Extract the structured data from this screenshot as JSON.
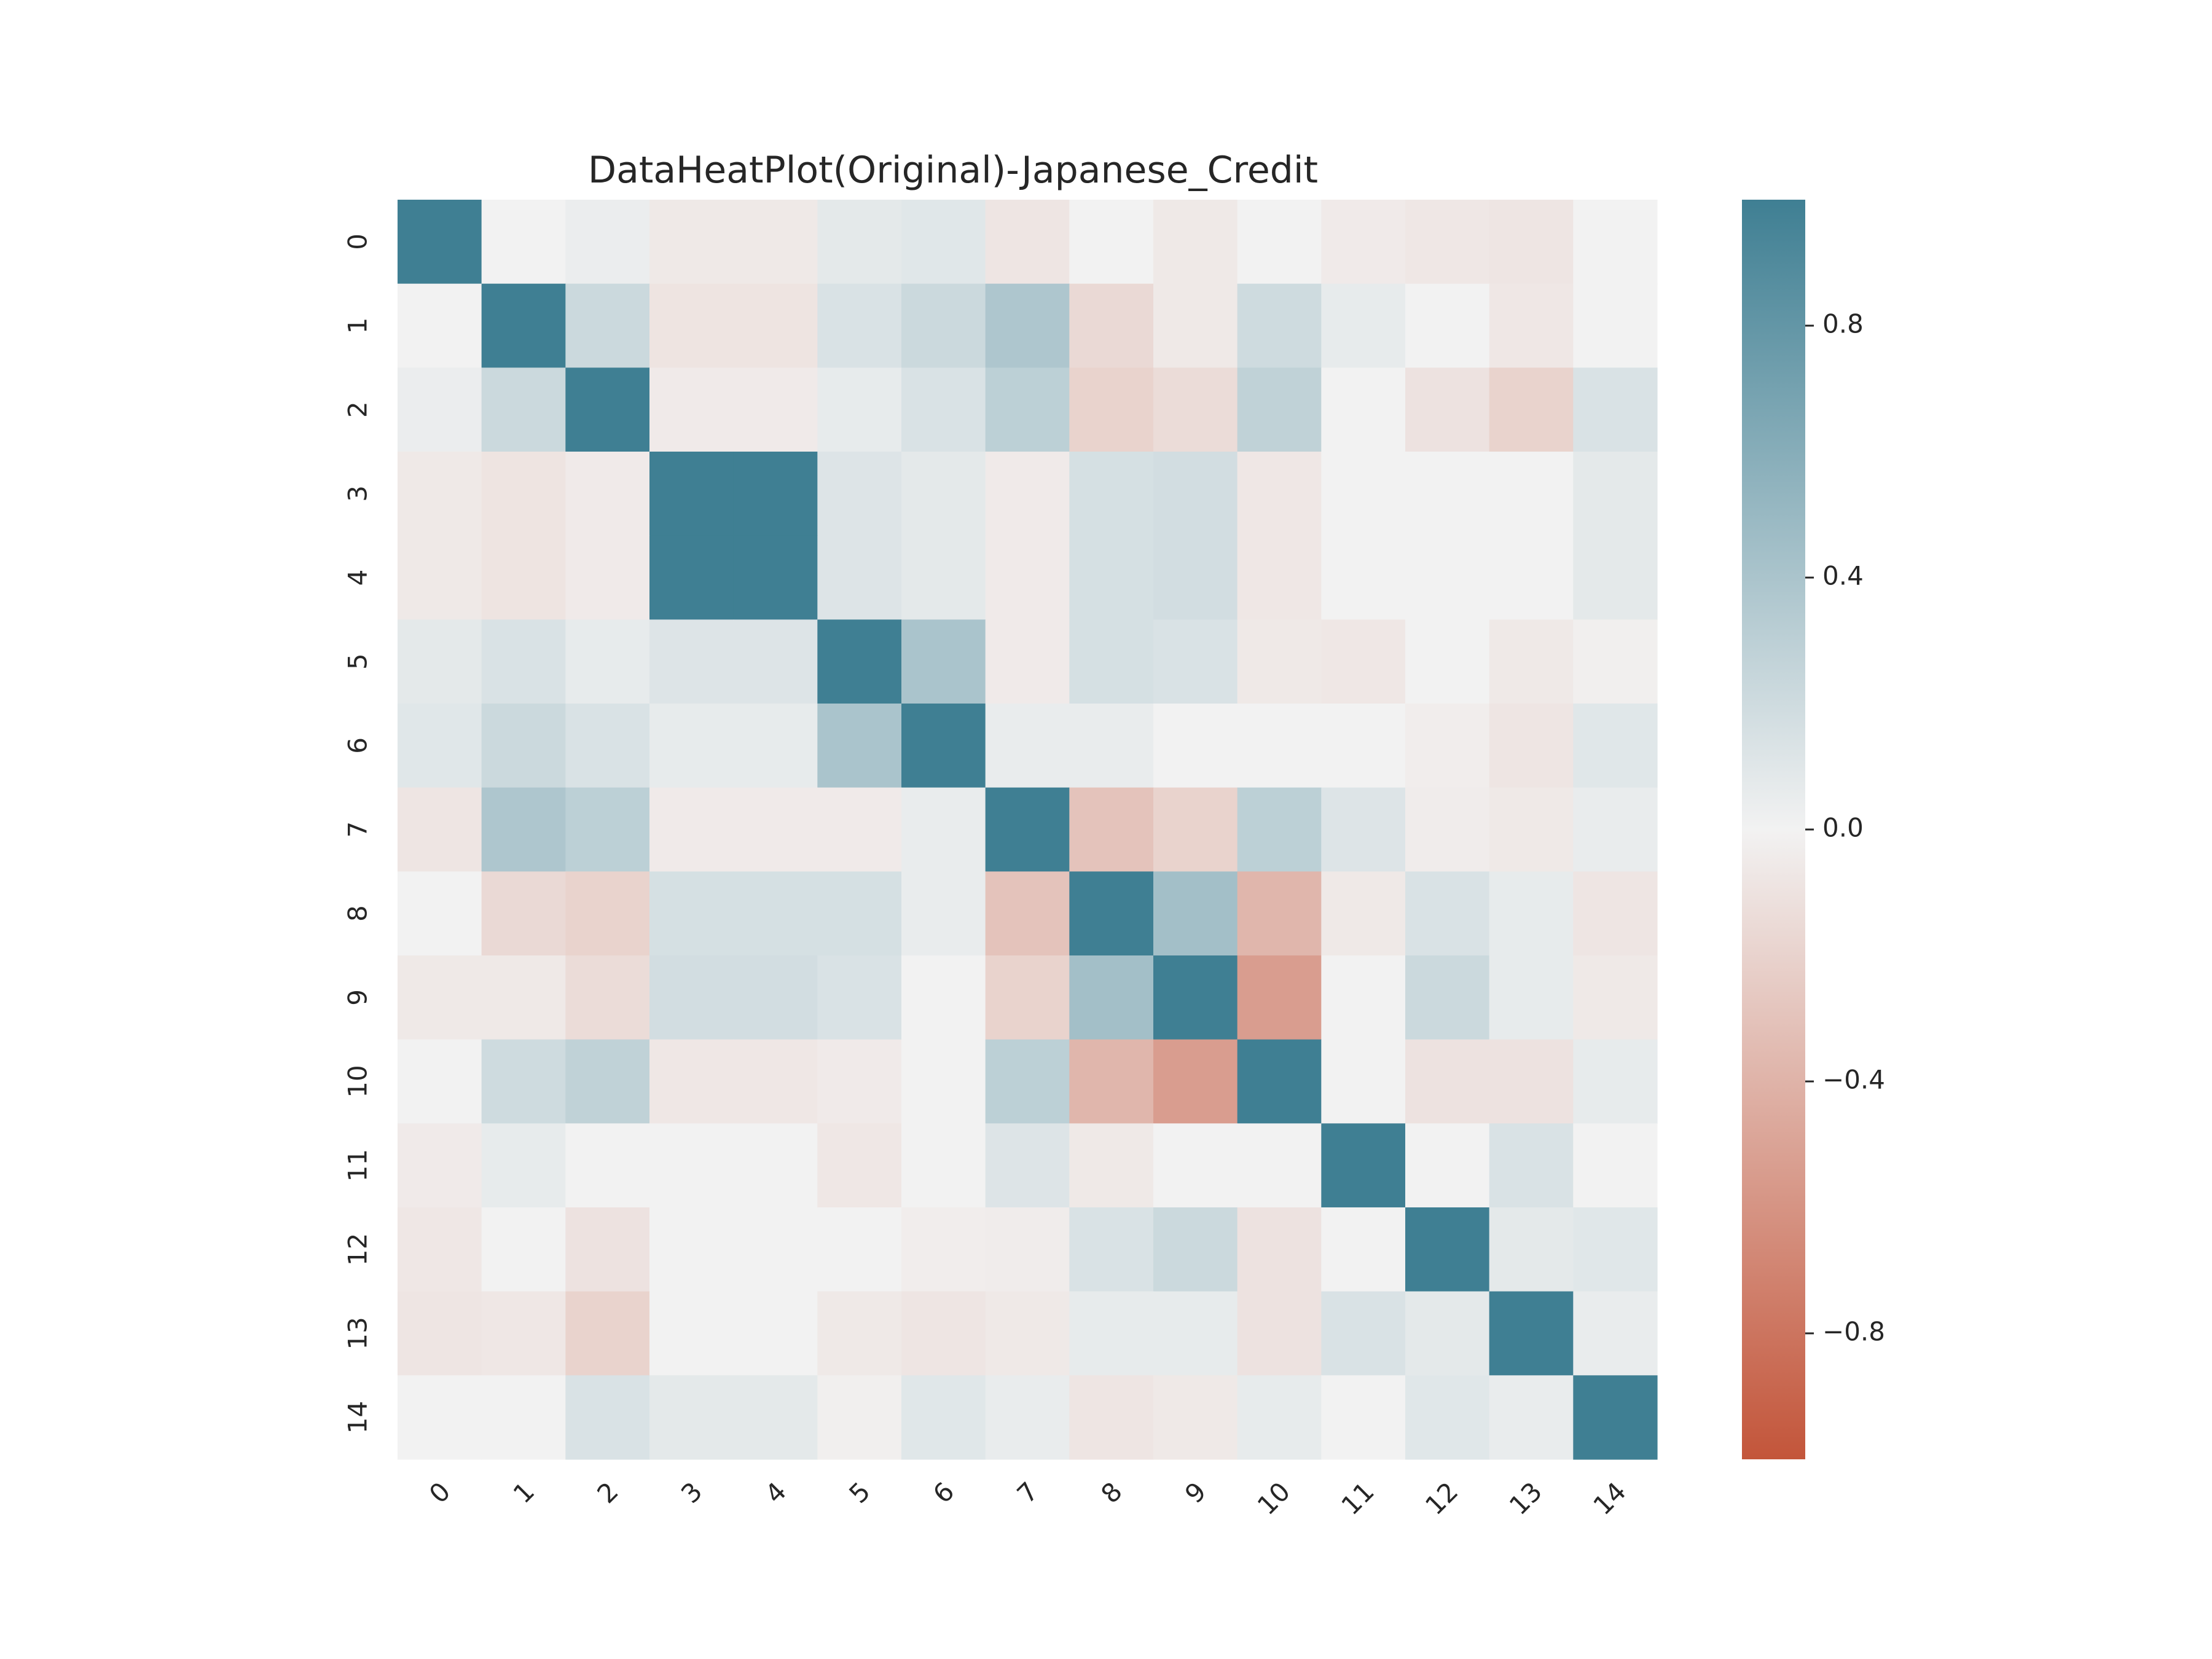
{
  "chart_data": {
    "type": "heatmap",
    "title": "DataHeatPlot(Original)-Japanese_Credit",
    "xlabel": "",
    "ylabel": "",
    "x_tick_labels": [
      "0",
      "1",
      "2",
      "3",
      "4",
      "5",
      "6",
      "7",
      "8",
      "9",
      "10",
      "11",
      "12",
      "13",
      "14"
    ],
    "y_tick_labels": [
      "0",
      "1",
      "2",
      "3",
      "4",
      "5",
      "6",
      "7",
      "8",
      "9",
      "10",
      "11",
      "12",
      "13",
      "14"
    ],
    "colorbar": {
      "vmin": -1.0,
      "vmax": 1.0,
      "ticks": [
        0.8,
        0.4,
        0.0,
        -0.4,
        -0.8
      ],
      "tick_labels": [
        "0.8",
        "0.4",
        "0.0",
        "−0.4",
        "−0.8"
      ],
      "negative_color": "#c3553a",
      "center_color": "#f2f2f2",
      "positive_color": "#3f7f93"
    },
    "grid": false,
    "legend": "colorbar-right",
    "values": [
      [
        1.0,
        0.0,
        0.04,
        -0.06,
        -0.06,
        0.08,
        0.1,
        -0.08,
        0.0,
        -0.06,
        0.0,
        -0.05,
        -0.07,
        -0.08,
        0.0
      ],
      [
        0.0,
        1.0,
        0.22,
        -0.09,
        -0.09,
        0.14,
        0.22,
        0.38,
        -0.16,
        -0.06,
        0.2,
        0.06,
        0.0,
        -0.07,
        0.0
      ],
      [
        0.04,
        0.22,
        1.0,
        -0.05,
        -0.05,
        0.06,
        0.14,
        0.3,
        -0.2,
        -0.14,
        0.28,
        0.0,
        -0.1,
        -0.2,
        0.14
      ],
      [
        -0.06,
        -0.09,
        -0.05,
        1.0,
        1.0,
        0.12,
        0.08,
        -0.05,
        0.16,
        0.18,
        -0.07,
        0.0,
        0.0,
        0.0,
        0.08
      ],
      [
        -0.06,
        -0.09,
        -0.05,
        1.0,
        1.0,
        0.12,
        0.08,
        -0.05,
        0.16,
        0.18,
        -0.07,
        0.0,
        0.0,
        0.0,
        0.08
      ],
      [
        0.08,
        0.14,
        0.06,
        0.12,
        0.12,
        1.0,
        0.4,
        -0.05,
        0.16,
        0.14,
        -0.06,
        -0.07,
        0.0,
        -0.06,
        -0.02
      ],
      [
        0.1,
        0.22,
        0.14,
        0.06,
        0.06,
        0.4,
        1.0,
        0.05,
        0.05,
        0.0,
        0.0,
        0.0,
        -0.03,
        -0.08,
        0.1
      ],
      [
        -0.08,
        0.38,
        0.3,
        -0.05,
        -0.05,
        -0.05,
        0.05,
        1.0,
        -0.3,
        -0.2,
        0.3,
        0.12,
        -0.04,
        -0.06,
        0.05
      ],
      [
        0.0,
        -0.16,
        -0.2,
        0.16,
        0.16,
        0.16,
        0.05,
        -0.3,
        1.0,
        0.44,
        -0.38,
        -0.06,
        0.14,
        0.06,
        -0.08
      ],
      [
        -0.06,
        -0.06,
        -0.14,
        0.18,
        0.18,
        0.14,
        0.0,
        -0.2,
        0.44,
        1.0,
        -0.54,
        0.0,
        0.22,
        0.06,
        -0.06
      ],
      [
        0.0,
        0.2,
        0.28,
        -0.07,
        -0.07,
        -0.05,
        0.0,
        0.3,
        -0.38,
        -0.54,
        1.0,
        0.0,
        -0.1,
        -0.1,
        0.06
      ],
      [
        -0.05,
        0.06,
        0.0,
        0.0,
        0.0,
        -0.07,
        0.0,
        0.12,
        -0.06,
        0.0,
        0.0,
        1.0,
        0.0,
        0.14,
        0.0
      ],
      [
        -0.07,
        0.0,
        -0.1,
        0.0,
        0.0,
        0.0,
        -0.03,
        -0.04,
        0.14,
        0.22,
        -0.1,
        0.0,
        1.0,
        0.08,
        0.1
      ],
      [
        -0.08,
        -0.07,
        -0.2,
        0.0,
        0.0,
        -0.06,
        -0.08,
        -0.06,
        0.06,
        0.06,
        -0.1,
        0.14,
        0.08,
        1.0,
        0.05
      ],
      [
        0.0,
        0.0,
        0.14,
        0.08,
        0.08,
        -0.02,
        0.1,
        0.05,
        -0.08,
        -0.06,
        0.06,
        0.0,
        0.1,
        0.05,
        1.0
      ]
    ]
  }
}
